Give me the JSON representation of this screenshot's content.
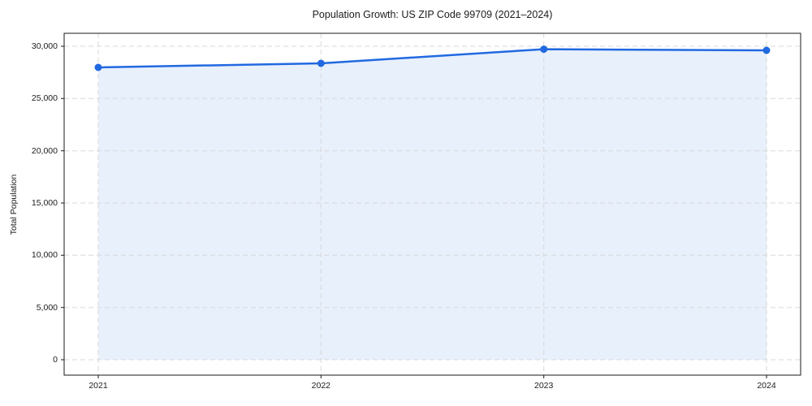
{
  "chart_data": {
    "type": "line",
    "title": "Population Growth: US ZIP Code 99709 (2021–2024)",
    "xlabel": "",
    "ylabel": "Total Population",
    "categories": [
      "2021",
      "2022",
      "2023",
      "2024"
    ],
    "series": [
      {
        "name": "Total Population",
        "values": [
          27980,
          28370,
          29720,
          29610
        ]
      }
    ],
    "ylim": [
      0,
      30000
    ],
    "y_ticks": [
      0,
      5000,
      10000,
      15000,
      20000,
      25000,
      30000
    ],
    "y_tick_labels": [
      "0",
      "5,000",
      "10,000",
      "15,000",
      "20,000",
      "25,000",
      "30,000"
    ],
    "grid": true,
    "grid_style": "dashed",
    "legend_position": "none",
    "area_fill": true,
    "marker": "circle",
    "colors": {
      "line": "#2169e1",
      "marker": "#2169e1",
      "area": "rgba(33, 105, 225, 0.10)",
      "grid": "#d8d8d8",
      "spine": "#1a1a1a",
      "text": "#1c1c1c",
      "background": "#ffffff"
    }
  }
}
